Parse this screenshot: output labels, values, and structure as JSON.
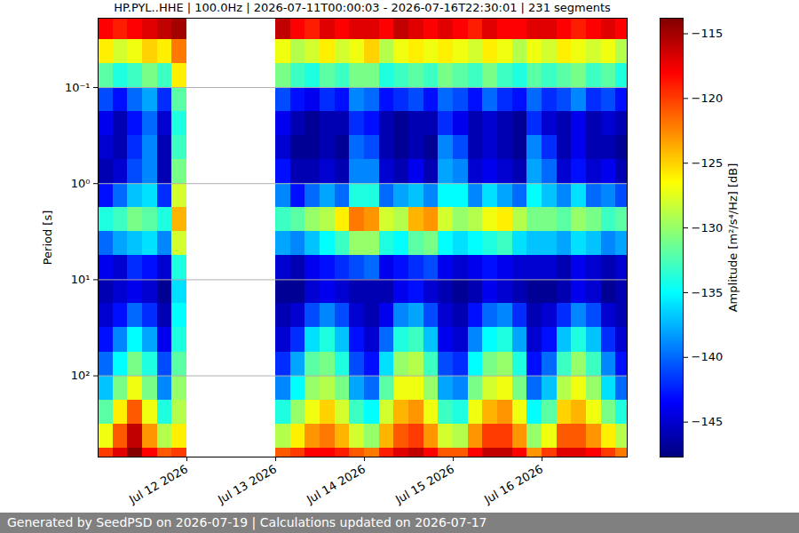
{
  "chart_data": {
    "type": "heatmap",
    "title": "HP.PYL..HHE | 100.0Hz | 2026-07-11T00:00:03 - 2026-07-16T22:30:01 | 231 segments",
    "y_label": "Period [s]",
    "colorbar_label": "Amplitude [m²/s⁴/Hz] [dB]",
    "footer": "Generated by SeedPSD on 2026-07-19 | Calculations updated on 2026-07-17",
    "log": "y",
    "grid": "y",
    "xlim": [
      "2026-07-11T00:00",
      "2026-07-16T23:00"
    ],
    "xticks": [
      {
        "value": "2026-07-12T00:00",
        "label": "Jul 12 2026"
      },
      {
        "value": "2026-07-13T00:00",
        "label": "Jul 13 2026"
      },
      {
        "value": "2026-07-14T00:00",
        "label": "Jul 14 2026"
      },
      {
        "value": "2026-07-15T00:00",
        "label": "Jul 15 2026"
      },
      {
        "value": "2026-07-16T00:00",
        "label": "Jul 16 2026"
      }
    ],
    "ylim": [
      0.019,
      700
    ],
    "yticks": [
      {
        "value": 0.1,
        "label": "10⁻¹"
      },
      {
        "value": 1,
        "label": "10⁰"
      },
      {
        "value": 10,
        "label": "10¹"
      },
      {
        "value": 100,
        "label": "10²"
      }
    ],
    "clim": [
      -147.7,
      -113.8
    ],
    "cticks": [
      -115,
      -120,
      -125,
      -130,
      -135,
      -140,
      -145
    ],
    "x_edges": [
      "2026-07-11T00:00",
      "2026-07-11T04:00",
      "2026-07-11T08:00",
      "2026-07-11T12:00",
      "2026-07-11T16:00",
      "2026-07-11T20:00",
      "2026-07-12T00:00",
      "2026-07-12T04:00",
      "2026-07-12T08:00",
      "2026-07-12T12:00",
      "2026-07-12T16:00",
      "2026-07-12T20:00",
      "2026-07-13T00:00",
      "2026-07-13T04:00",
      "2026-07-13T08:00",
      "2026-07-13T12:00",
      "2026-07-13T16:00",
      "2026-07-13T20:00",
      "2026-07-14T00:00",
      "2026-07-14T04:00",
      "2026-07-14T08:00",
      "2026-07-14T12:00",
      "2026-07-14T16:00",
      "2026-07-14T20:00",
      "2026-07-15T00:00",
      "2026-07-15T04:00",
      "2026-07-15T08:00",
      "2026-07-15T12:00",
      "2026-07-15T16:00",
      "2026-07-15T20:00",
      "2026-07-16T00:00",
      "2026-07-16T04:00",
      "2026-07-16T08:00",
      "2026-07-16T12:00",
      "2026-07-16T16:00",
      "2026-07-16T20:00",
      "2026-07-17T00:00"
    ],
    "y_edges": [
      0.0178,
      0.0316,
      0.0562,
      0.1,
      0.178,
      0.316,
      0.562,
      1,
      1.78,
      3.16,
      5.62,
      10,
      17.8,
      31.6,
      56.2,
      100,
      178,
      316,
      562,
      1000
    ],
    "cells": [
      [
        -118,
        -119,
        -118,
        -117,
        -116,
        -115,
        null,
        null,
        null,
        null,
        null,
        null,
        -116,
        -118,
        -119,
        -117,
        -118,
        -117,
        -117,
        -118,
        -116,
        -117,
        -118,
        -117,
        -118,
        -119,
        -117,
        -118,
        -118,
        -117,
        -117,
        -118,
        -119,
        -118,
        -117,
        -118
      ],
      [
        -126,
        -128,
        -127,
        -125,
        -126,
        -122,
        null,
        null,
        null,
        null,
        null,
        null,
        -127,
        -129,
        -128,
        -126,
        -128,
        -127,
        -125,
        -129,
        -127,
        -126,
        -127,
        -126,
        -127,
        -128,
        -126,
        -127,
        -129,
        -127,
        -128,
        -126,
        -127,
        -128,
        -127,
        -129
      ],
      [
        -132,
        -134,
        -133,
        -131,
        -133,
        -126,
        null,
        null,
        null,
        null,
        null,
        null,
        -131,
        -133,
        -134,
        -132,
        -133,
        -131,
        -131,
        -134,
        -133,
        -132,
        -133,
        -131,
        -132,
        -133,
        -131,
        -133,
        -134,
        -132,
        -133,
        -132,
        -131,
        -133,
        -132,
        -134
      ],
      [
        -141,
        -143,
        -140,
        -138,
        -142,
        -132,
        null,
        null,
        null,
        null,
        null,
        null,
        -141,
        -143,
        -144,
        -142,
        -143,
        -139,
        -140,
        -143,
        -142,
        -141,
        -143,
        -140,
        -141,
        -143,
        -140,
        -142,
        -143,
        -140,
        -142,
        -141,
        -139,
        -142,
        -141,
        -143
      ],
      [
        -144,
        -146,
        -143,
        -140,
        -145,
        -134,
        null,
        null,
        null,
        null,
        null,
        null,
        -144,
        -146,
        -147,
        -146,
        -146,
        -142,
        -143,
        -146,
        -147,
        -146,
        -146,
        -142,
        -144,
        -146,
        -145,
        -146,
        -147,
        -142,
        -145,
        -146,
        -144,
        -146,
        -145,
        -146
      ],
      [
        -145,
        -146,
        -142,
        -139,
        -146,
        -133,
        null,
        null,
        null,
        null,
        null,
        null,
        -145,
        -147,
        -147,
        -146,
        -147,
        -140,
        -141,
        -146,
        -147,
        -146,
        -147,
        -139,
        -141,
        -146,
        -145,
        -146,
        -147,
        -139,
        -142,
        -146,
        -144,
        -146,
        -146,
        -147
      ],
      [
        -146,
        -145,
        -141,
        -139,
        -146,
        -131,
        null,
        null,
        null,
        null,
        null,
        null,
        -143,
        -146,
        -146,
        -145,
        -146,
        -139,
        -139,
        -145,
        -146,
        -144,
        -146,
        -138,
        -139,
        -145,
        -144,
        -145,
        -146,
        -138,
        -140,
        -145,
        -143,
        -145,
        -144,
        -146
      ],
      [
        -143,
        -140,
        -137,
        -136,
        -142,
        -128,
        null,
        null,
        null,
        null,
        null,
        null,
        -139,
        -143,
        -140,
        -138,
        -140,
        -134,
        -134,
        -140,
        -138,
        -137,
        -139,
        -135,
        -135,
        -139,
        -136,
        -138,
        -140,
        -135,
        -137,
        -139,
        -136,
        -140,
        -139,
        -141
      ],
      [
        -134,
        -133,
        -131,
        -132,
        -134,
        -124,
        null,
        null,
        null,
        null,
        null,
        null,
        -133,
        -132,
        -130,
        -129,
        -126,
        -122,
        -123,
        -128,
        -129,
        -124,
        -123,
        -128,
        -130,
        -129,
        -127,
        -126,
        -129,
        -131,
        -131,
        -132,
        -130,
        -131,
        -133,
        -132
      ],
      [
        -140,
        -138,
        -137,
        -136,
        -139,
        -128,
        null,
        null,
        null,
        null,
        null,
        null,
        -138,
        -139,
        -137,
        -135,
        -133,
        -130,
        -130,
        -134,
        -135,
        -132,
        -131,
        -135,
        -136,
        -135,
        -134,
        -133,
        -136,
        -137,
        -137,
        -138,
        -136,
        -137,
        -139,
        -138
      ],
      [
        -144,
        -145,
        -142,
        -143,
        -145,
        -134,
        null,
        null,
        null,
        null,
        null,
        null,
        -145,
        -146,
        -144,
        -143,
        -142,
        -141,
        -140,
        -144,
        -143,
        -142,
        -141,
        -144,
        -145,
        -144,
        -143,
        -144,
        -145,
        -145,
        -145,
        -146,
        -144,
        -145,
        -146,
        -145
      ],
      [
        -146,
        -145,
        -144,
        -145,
        -147,
        -136,
        null,
        null,
        null,
        null,
        null,
        null,
        -147,
        -147,
        -145,
        -144,
        -145,
        -146,
        -146,
        -146,
        -144,
        -143,
        -145,
        -146,
        -147,
        -146,
        -144,
        -145,
        -146,
        -147,
        -147,
        -146,
        -144,
        -145,
        -147,
        -146
      ],
      [
        -145,
        -143,
        -140,
        -142,
        -146,
        -135,
        null,
        null,
        null,
        null,
        null,
        null,
        -146,
        -145,
        -141,
        -139,
        -141,
        -145,
        -146,
        -144,
        -139,
        -138,
        -141,
        -145,
        -146,
        -143,
        -140,
        -139,
        -142,
        -146,
        -145,
        -142,
        -139,
        -141,
        -145,
        -146
      ],
      [
        -143,
        -139,
        -135,
        -138,
        -144,
        -134,
        null,
        null,
        null,
        null,
        null,
        null,
        -145,
        -142,
        -136,
        -134,
        -137,
        -143,
        -145,
        -140,
        -134,
        -133,
        -137,
        -144,
        -145,
        -139,
        -135,
        -134,
        -138,
        -145,
        -143,
        -137,
        -134,
        -137,
        -142,
        -145
      ],
      [
        -140,
        -135,
        -131,
        -134,
        -141,
        -132,
        null,
        null,
        null,
        null,
        null,
        null,
        -142,
        -138,
        -132,
        -131,
        -134,
        -141,
        -143,
        -136,
        -130,
        -129,
        -133,
        -141,
        -142,
        -135,
        -131,
        -130,
        -134,
        -143,
        -140,
        -133,
        -130,
        -133,
        -139,
        -143
      ],
      [
        -137,
        -131,
        -127,
        -131,
        -139,
        -130,
        null,
        null,
        null,
        null,
        null,
        null,
        -139,
        -135,
        -130,
        -129,
        -131,
        -138,
        -140,
        -132,
        -127,
        -127,
        -130,
        -138,
        -139,
        -131,
        -128,
        -127,
        -131,
        -140,
        -137,
        -129,
        -127,
        -130,
        -136,
        -140
      ],
      [
        -132,
        -126,
        -121,
        -127,
        -134,
        -129,
        null,
        null,
        null,
        null,
        null,
        null,
        -134,
        -130,
        -127,
        -125,
        -128,
        -133,
        -135,
        -128,
        -124,
        -123,
        -127,
        -133,
        -134,
        -127,
        -124,
        -123,
        -127,
        -135,
        -132,
        -125,
        -124,
        -127,
        -131,
        -134
      ],
      [
        -127,
        -121,
        -116,
        -123,
        -129,
        -126,
        null,
        null,
        null,
        null,
        null,
        null,
        -129,
        -126,
        -123,
        -122,
        -124,
        -128,
        -130,
        -124,
        -121,
        -120,
        -123,
        -128,
        -129,
        -123,
        -120,
        -120,
        -123,
        -130,
        -127,
        -121,
        -121,
        -123,
        -126,
        -129
      ],
      [
        -120,
        -117,
        -114,
        -118,
        -121,
        -120,
        null,
        null,
        null,
        null,
        null,
        null,
        -121,
        -120,
        -118,
        -118,
        -119,
        -121,
        -122,
        -119,
        -117,
        -116,
        -118,
        -121,
        -121,
        -118,
        -116,
        -116,
        -118,
        -123,
        -120,
        -117,
        -117,
        -118,
        -120,
        -122
      ]
    ]
  }
}
